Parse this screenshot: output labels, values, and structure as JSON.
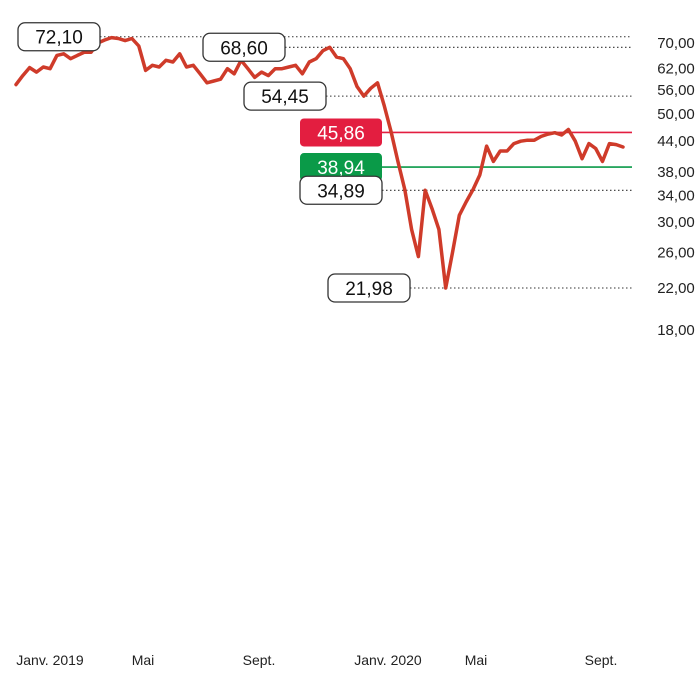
{
  "chart_data": {
    "type": "line",
    "title": "",
    "xlabel": "",
    "ylabel": "",
    "scale": "log",
    "ylim": [
      16.5,
      75
    ],
    "grid": false,
    "x_ticks": [
      "Janv. 2019",
      "Mai",
      "Sept.",
      "Janv. 2020",
      "Mai",
      "Sept."
    ],
    "y_ticks": [
      "70,00",
      "62,00",
      "56,00",
      "50,00",
      "44,00",
      "38,00",
      "34,00",
      "30,00",
      "26,00",
      "22,00",
      "18,00"
    ],
    "y_tick_values": [
      70,
      62,
      56,
      50,
      44,
      38,
      34,
      30,
      26,
      22,
      18
    ],
    "series": [
      {
        "color": "#cf3b2a",
        "x_start": "2019-01-01",
        "x_end": "2020-09-30",
        "values": [
          57.5,
          60,
          62.3,
          61,
          62.5,
          62,
          66,
          66.5,
          65,
          66,
          67,
          67,
          70,
          71,
          71.8,
          71.5,
          70.8,
          71.5,
          69,
          61.5,
          63,
          62.5,
          64.5,
          64,
          66.5,
          62.5,
          63,
          60.5,
          58,
          58.5,
          59,
          62,
          60.5,
          64.5,
          62,
          59.5,
          61,
          60,
          62,
          62,
          62.5,
          63,
          60.5,
          64,
          65,
          67.5,
          68.6,
          65.5,
          65,
          62,
          57,
          54.45,
          56.5,
          58,
          52,
          46,
          40,
          35,
          29,
          25.5,
          34.89,
          32,
          29,
          21.98,
          26,
          31,
          33,
          35,
          37.5,
          43,
          40,
          42,
          42,
          43.5,
          44,
          44.2,
          44.2,
          45,
          45.5,
          45.8,
          45.3,
          46.5,
          44,
          40.5,
          43.5,
          42.5,
          40,
          43.5,
          43.3,
          42.8
        ]
      }
    ],
    "reference_lines": [
      {
        "value": 45.86,
        "label": "45,86",
        "color": "#e31e40",
        "style": "solid"
      },
      {
        "value": 38.94,
        "label": "38,94",
        "color": "#0a9a48",
        "style": "solid"
      }
    ],
    "annotations": [
      {
        "value": 72.1,
        "label": "72,10",
        "position": "2019-03-26"
      },
      {
        "value": 68.6,
        "label": "68,60",
        "position": "2019-12-05"
      },
      {
        "value": 54.45,
        "label": "54,45",
        "position": "2020-01-02"
      },
      {
        "value": 34.89,
        "label": "34,89",
        "position": "2020-02-10"
      },
      {
        "value": 21.98,
        "label": "21,98",
        "position": "2020-03-16"
      }
    ]
  }
}
